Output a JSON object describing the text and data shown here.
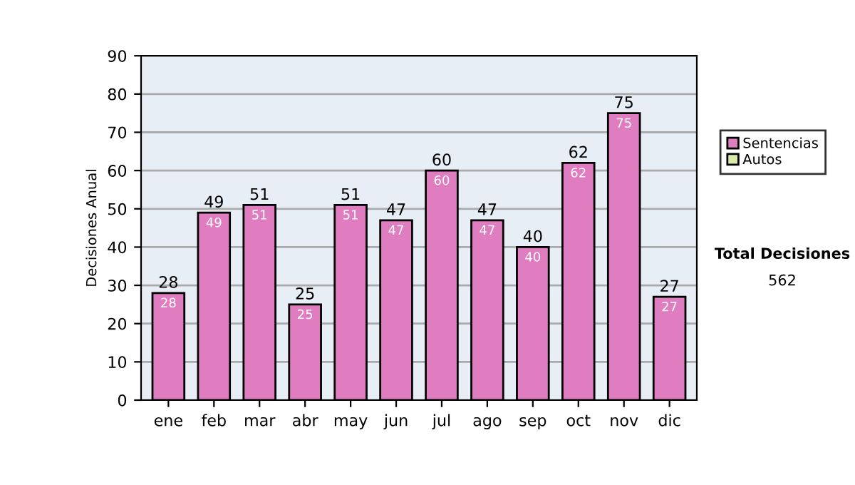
{
  "chart_data": {
    "type": "bar",
    "stacked": true,
    "ylabel": "Decisiones Anual",
    "categories": [
      "ene",
      "feb",
      "mar",
      "abr",
      "may",
      "jun",
      "jul",
      "ago",
      "sep",
      "oct",
      "nov",
      "dic"
    ],
    "series": [
      {
        "name": "Sentencias",
        "color": "#e07cc0",
        "values": [
          28,
          49,
          51,
          25,
          51,
          47,
          60,
          47,
          40,
          62,
          75,
          27
        ],
        "value_labels": [
          "28",
          "49",
          "51",
          "25",
          "51",
          "47",
          "60",
          "47",
          "40",
          "62",
          "75",
          "27"
        ]
      },
      {
        "name": "Autos",
        "color": "#d8ecaa",
        "values": [
          null,
          null,
          null,
          null,
          null,
          null,
          null,
          null,
          null,
          null,
          null,
          null
        ]
      }
    ],
    "totals": [
      "28",
      "49",
      "51",
      "25",
      "51",
      "47",
      "60",
      "47",
      "40",
      "62",
      "75",
      "27"
    ],
    "ylim": [
      0,
      90
    ],
    "yticks": [
      0,
      10,
      20,
      30,
      40,
      50,
      60,
      70,
      80,
      90
    ],
    "grid": "y",
    "legend": "right",
    "annotations": [
      "Total Decisiones",
      "562"
    ]
  }
}
